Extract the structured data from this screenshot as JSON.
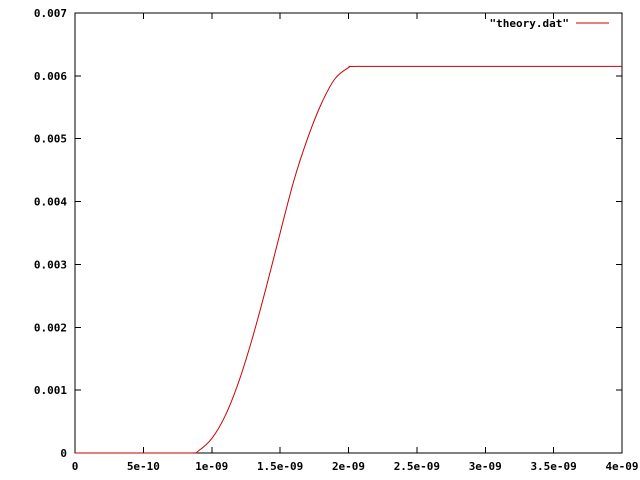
{
  "chart_data": {
    "type": "line",
    "title": "",
    "xlabel": "",
    "ylabel": "",
    "xlim": [
      0,
      4e-09
    ],
    "ylim": [
      0,
      0.007
    ],
    "grid": false,
    "legend_position": "top-right",
    "x_ticks": [
      {
        "value": 0,
        "label": "0"
      },
      {
        "value": 5e-10,
        "label": "5e-10"
      },
      {
        "value": 1e-09,
        "label": "1e-09"
      },
      {
        "value": 1.5e-09,
        "label": "1.5e-09"
      },
      {
        "value": 2e-09,
        "label": "2e-09"
      },
      {
        "value": 2.5e-09,
        "label": "2.5e-09"
      },
      {
        "value": 3e-09,
        "label": "3e-09"
      },
      {
        "value": 3.5e-09,
        "label": "3.5e-09"
      },
      {
        "value": 4e-09,
        "label": "4e-09"
      }
    ],
    "y_ticks": [
      {
        "value": 0,
        "label": "0"
      },
      {
        "value": 0.001,
        "label": "0.001"
      },
      {
        "value": 0.002,
        "label": "0.002"
      },
      {
        "value": 0.003,
        "label": "0.003"
      },
      {
        "value": 0.004,
        "label": "0.004"
      },
      {
        "value": 0.005,
        "label": "0.005"
      },
      {
        "value": 0.006,
        "label": "0.006"
      },
      {
        "value": 0.007,
        "label": "0.007"
      }
    ],
    "series": [
      {
        "name": "\"theory.dat\"",
        "color": "#cc0000",
        "x": [
          0,
          5e-10,
          8.5e-10,
          9e-10,
          1e-09,
          1.1e-09,
          1.2e-09,
          1.3e-09,
          1.4e-09,
          1.5e-09,
          1.6e-09,
          1.7e-09,
          1.8e-09,
          1.9e-09,
          2e-09,
          2.05e-09,
          2.5e-09,
          3e-09,
          3.5e-09,
          4e-09
        ],
        "y": [
          0,
          0,
          0,
          3e-05,
          0.00023,
          0.0006,
          0.00115,
          0.00185,
          0.00265,
          0.0035,
          0.00433,
          0.005,
          0.00555,
          0.00595,
          0.00613,
          0.00615,
          0.00615,
          0.00615,
          0.00615,
          0.00615
        ]
      }
    ]
  }
}
